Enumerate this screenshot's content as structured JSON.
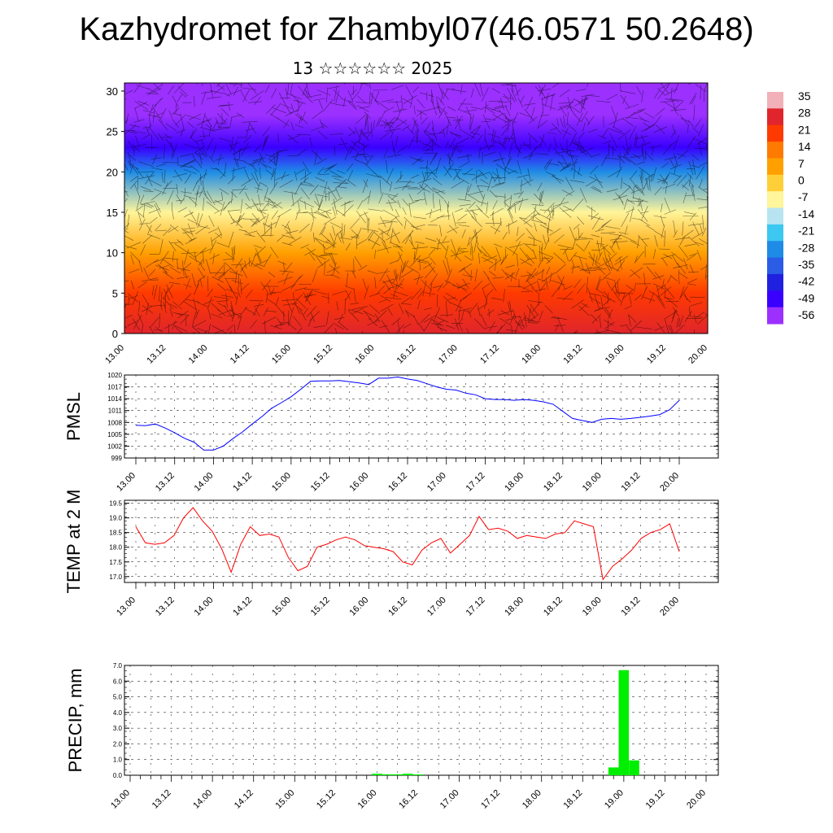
{
  "header": {
    "title": "Kazhydromet for Zhambyl07(46.0571 50.2648)",
    "subtitle": "13 ☆☆☆☆☆☆ 2025"
  },
  "chart_data": [
    {
      "type": "heatmap",
      "name": "cross-section",
      "title": "",
      "x_tick_labels": [
        "13.00",
        "13.12",
        "14.00",
        "14.12",
        "15.00",
        "15.12",
        "16.00",
        "16.12",
        "17.00",
        "17.12",
        "18.00",
        "18.12",
        "19.00",
        "19.12",
        "20.00"
      ],
      "y_ticks": [
        0,
        5,
        10,
        15,
        20,
        25,
        30
      ],
      "ylim": [
        0,
        31
      ],
      "colorbar": {
        "labels": [
          "35",
          "28",
          "21",
          "14",
          "7",
          "0",
          "-7",
          "-14",
          "-21",
          "-28",
          "-35",
          "-42",
          "-49",
          "-56"
        ],
        "colors": [
          "#f2b0b8",
          "#e0252c",
          "#ff3a00",
          "#ff7a00",
          "#ffa000",
          "#ffcf3a",
          "#fff59a",
          "#b8e4f2",
          "#3cc8f0",
          "#1e8ce6",
          "#2a5ce6",
          "#2020e0",
          "#3a00ff",
          "#9b30ff"
        ]
      },
      "vertical_profile": [
        {
          "level": 0,
          "value": 28
        },
        {
          "level": 5,
          "value": 21
        },
        {
          "level": 10,
          "value": 10
        },
        {
          "level": 15,
          "value": -7
        },
        {
          "level": 20,
          "value": -28
        },
        {
          "level": 23,
          "value": -49
        },
        {
          "level": 27,
          "value": -56
        },
        {
          "level": 31,
          "value": -56
        }
      ]
    },
    {
      "type": "line",
      "name": "pmsl",
      "ylabel": "PMSL",
      "ylim": [
        999,
        1020
      ],
      "y_ticks": [
        999,
        1002,
        1005,
        1008,
        1011,
        1014,
        1017,
        1020
      ],
      "x_tick_labels": [
        "13.00",
        "13.12",
        "14.00",
        "14.12",
        "15.00",
        "15.12",
        "16.00",
        "16.12",
        "17.00",
        "17.12",
        "18.00",
        "18.12",
        "19.00",
        "19.12",
        "20.00"
      ],
      "series": [
        {
          "color": "#0000ff",
          "values": [
            1007.3,
            1007.2,
            1007.6,
            1006.6,
            1005.4,
            1004,
            1003,
            1001,
            1001,
            1002,
            1003.9,
            1005.6,
            1007.6,
            1009.5,
            1011.6,
            1013,
            1014.5,
            1016.4,
            1018.4,
            1018.5,
            1018.5,
            1018.6,
            1018.3,
            1018,
            1017.6,
            1019.2,
            1019.2,
            1019.5,
            1019,
            1018.6,
            1017.8,
            1017,
            1016.4,
            1016.2,
            1015.4,
            1015,
            1014,
            1013.8,
            1013.8,
            1013.6,
            1013.8,
            1013.6,
            1013.2,
            1012.6,
            1010.8,
            1009,
            1008.5,
            1008,
            1008.8,
            1009,
            1008.8,
            1009,
            1009.3,
            1009.6,
            1010,
            1011.2,
            1013.6
          ]
        }
      ]
    },
    {
      "type": "line",
      "name": "temp",
      "ylabel": "TEMP at 2 M",
      "ylim": [
        16.8,
        19.6
      ],
      "y_ticks": [
        17.0,
        17.5,
        18.0,
        18.5,
        19.0,
        19.5
      ],
      "y_tick_labels": [
        "17.0",
        "17.5",
        "18.0",
        "18.5",
        "19.0",
        "19.5"
      ],
      "x_tick_labels": [
        "13.00",
        "13.12",
        "14.00",
        "14.12",
        "15.00",
        "15.12",
        "16.00",
        "16.12",
        "17.00",
        "17.12",
        "18.00",
        "18.12",
        "19.00",
        "19.12",
        "20.00"
      ],
      "series": [
        {
          "color": "#ff0000",
          "values": [
            18.7,
            18.15,
            18.1,
            18.15,
            18.4,
            19.0,
            19.35,
            18.9,
            18.55,
            17.95,
            17.15,
            18.1,
            18.7,
            18.4,
            18.45,
            18.35,
            17.65,
            17.2,
            17.35,
            18.0,
            18.1,
            18.25,
            18.35,
            18.25,
            18.05,
            18.0,
            17.95,
            17.85,
            17.5,
            17.4,
            17.9,
            18.15,
            18.3,
            17.8,
            18.1,
            18.4,
            19.05,
            18.6,
            18.65,
            18.55,
            18.3,
            18.4,
            18.35,
            18.3,
            18.45,
            18.5,
            18.9,
            18.8,
            18.7,
            16.9,
            17.35,
            17.6,
            17.9,
            18.3,
            18.5,
            18.6,
            18.8,
            17.85
          ]
        }
      ]
    },
    {
      "type": "bar",
      "name": "precip",
      "ylabel": "PRECIP, mm",
      "ylim": [
        0,
        7.0
      ],
      "y_ticks": [
        0,
        1,
        2,
        3,
        4,
        5,
        6,
        7
      ],
      "y_tick_labels": [
        "0.0",
        "1.0",
        "2.0",
        "3.0",
        "4.0",
        "5.0",
        "6.0",
        "7.0"
      ],
      "x_tick_labels": [
        "13.00",
        "13.12",
        "14.00",
        "14.12",
        "15.00",
        "15.12",
        "16.00",
        "16.12",
        "17.00",
        "17.12",
        "18.00",
        "18.12",
        "19.00",
        "19.12",
        "20.00"
      ],
      "color": "#00ee00",
      "bars": [
        {
          "t": 16.0,
          "value": 0.1
        },
        {
          "t": 16.125,
          "value": 0.06
        },
        {
          "t": 16.25,
          "value": 0.06
        },
        {
          "t": 16.375,
          "value": 0.1
        },
        {
          "t": 16.5,
          "value": 0.05
        },
        {
          "t": 18.875,
          "value": 0.5
        },
        {
          "t": 19.0,
          "value": 6.7
        },
        {
          "t": 19.125,
          "value": 0.95
        }
      ]
    }
  ]
}
